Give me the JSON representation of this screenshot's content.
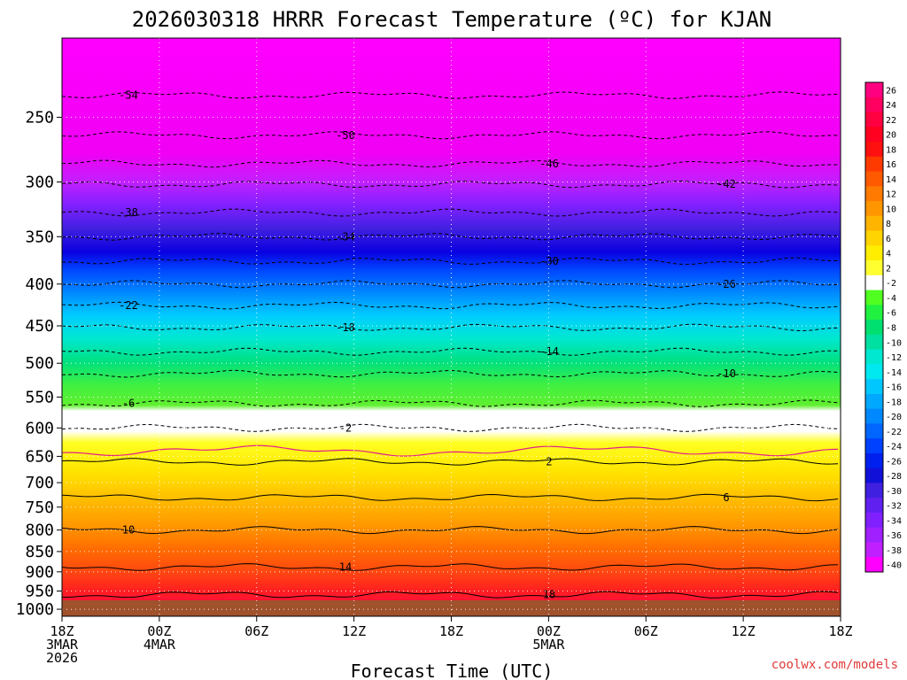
{
  "chart_data": {
    "type": "heatmap",
    "title": "2026030318 HRRR Forecast Temperature (ºC) for KJAN",
    "xlabel": "Forecast Time (UTC)",
    "ylabel": "",
    "x_ticks": [
      {
        "hour": 0,
        "lines": [
          "18Z",
          "3MAR",
          "2026"
        ]
      },
      {
        "hour": 6,
        "lines": [
          "00Z",
          "4MAR"
        ]
      },
      {
        "hour": 12,
        "lines": [
          "06Z"
        ]
      },
      {
        "hour": 18,
        "lines": [
          "12Z"
        ]
      },
      {
        "hour": 24,
        "lines": [
          "18Z"
        ]
      },
      {
        "hour": 30,
        "lines": [
          "00Z",
          "5MAR"
        ]
      },
      {
        "hour": 36,
        "lines": [
          "06Z"
        ]
      },
      {
        "hour": 42,
        "lines": [
          "12Z"
        ]
      },
      {
        "hour": 48,
        "lines": [
          "18Z"
        ]
      }
    ],
    "xlim": [
      0,
      48
    ],
    "y_ticks": [
      250,
      300,
      350,
      400,
      450,
      500,
      550,
      600,
      650,
      700,
      750,
      800,
      850,
      900,
      950,
      1000
    ],
    "ylim": [
      200,
      1020
    ],
    "y_scale": "log-pressure",
    "grid": true,
    "colorbar": {
      "labels": [
        26,
        24,
        22,
        20,
        18,
        16,
        14,
        12,
        10,
        8,
        6,
        4,
        2,
        -2,
        -4,
        -6,
        -8,
        -10,
        -12,
        -14,
        -16,
        -18,
        -20,
        -22,
        -24,
        -26,
        -28,
        -30,
        -32,
        -34,
        -36,
        -38,
        -40
      ],
      "colors": [
        "#ff0080",
        "#ff0060",
        "#ff0040",
        "#ff0020",
        "#ff1010",
        "#ff3a00",
        "#ff5a00",
        "#ff7a00",
        "#ff9600",
        "#ffb400",
        "#ffd400",
        "#ffee00",
        "#ffff30",
        "#ffffff",
        "#50ff20",
        "#20f040",
        "#00e070",
        "#00e0a0",
        "#00e8d0",
        "#00e8f0",
        "#00c8ff",
        "#00a8ff",
        "#0088ff",
        "#0066ff",
        "#0040ff",
        "#0020f0",
        "#1010d8",
        "#4020e0",
        "#6020f0",
        "#8020ff",
        "#a020ff",
        "#c020ff",
        "#ff00ff"
      ],
      "placement": "right"
    },
    "isotherms": [
      {
        "label": "-54",
        "p": 235
      },
      {
        "label": "-50",
        "p": 263
      },
      {
        "label": "-46",
        "p": 285
      },
      {
        "label": "-42",
        "p": 302
      },
      {
        "label": "-38",
        "p": 327
      },
      {
        "label": "-34",
        "p": 350
      },
      {
        "label": "-30",
        "p": 375
      },
      {
        "label": "-26",
        "p": 400
      },
      {
        "label": "-22",
        "p": 425
      },
      {
        "label": "-18",
        "p": 452
      },
      {
        "label": "-14",
        "p": 484
      },
      {
        "label": "-10",
        "p": 515
      },
      {
        "label": "-6",
        "p": 560
      },
      {
        "label": "-2",
        "p": 600
      },
      {
        "label": "2",
        "p": 660
      },
      {
        "label": "6",
        "p": 730
      },
      {
        "label": "10",
        "p": 800
      },
      {
        "label": "14",
        "p": 888
      },
      {
        "label": "18",
        "p": 960
      }
    ],
    "ground_pressure": 1000
  },
  "credit": "coolwx.com/models",
  "colors": {
    "ground": "#a0522d",
    "freezing_line": "#e0208a"
  }
}
